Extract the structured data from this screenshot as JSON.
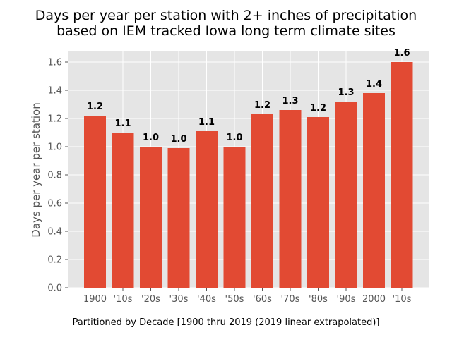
{
  "chart_data": {
    "type": "bar",
    "title_lines": [
      "Days per year per station with 2+ inches of precipitation",
      "based on IEM tracked Iowa long term climate sites"
    ],
    "xlabel": "Partitioned by Decade [1900 thru 2019 (2019 linear extrapolated)]",
    "ylabel": "Days per year per station",
    "categories": [
      "1900",
      "'10s",
      "'20s",
      "'30s",
      "'40s",
      "'50s",
      "'60s",
      "'70s",
      "'80s",
      "'90s",
      "2000",
      "'10s"
    ],
    "values": [
      1.22,
      1.1,
      1.0,
      0.99,
      1.11,
      1.0,
      1.23,
      1.26,
      1.21,
      1.32,
      1.38,
      1.6
    ],
    "data_labels": [
      "1.2",
      "1.1",
      "1.0",
      "1.0",
      "1.1",
      "1.0",
      "1.2",
      "1.3",
      "1.2",
      "1.3",
      "1.4",
      "1.6"
    ],
    "y_ticks": [
      "0.0",
      "0.2",
      "0.4",
      "0.6",
      "0.8",
      "1.0",
      "1.2",
      "1.4",
      "1.6"
    ],
    "ylim": [
      0,
      1.68
    ],
    "grid": true,
    "bar_color": "#E24A33",
    "plot_background": "#E5E5E5",
    "grid_color": "#FFFFFF"
  }
}
